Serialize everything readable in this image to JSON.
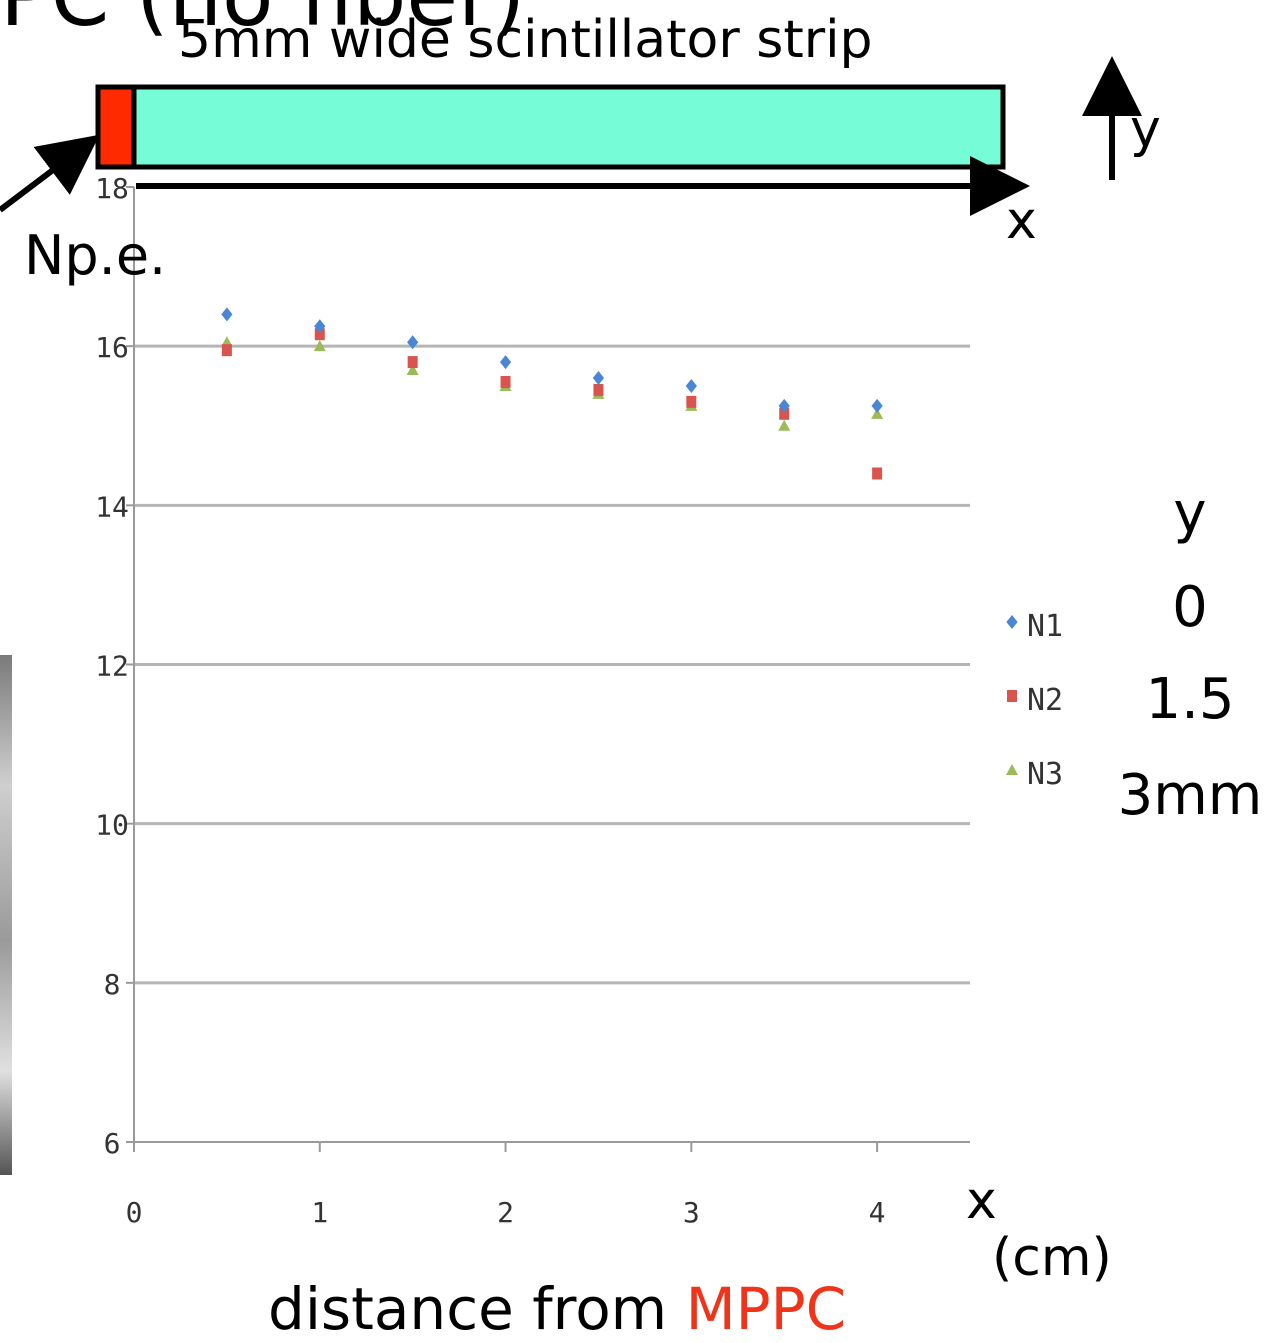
{
  "header": {
    "cropped_title": "PC (no fiber)",
    "strip_label": "5mm wide scintillator strip",
    "x_axis_arrow_label": "x",
    "y_axis_arrow_label": "y",
    "strip_colors": {
      "mppc": "#ff2a00",
      "scintillator": "#76fcd7"
    }
  },
  "ylabel": "Np.e.",
  "xlabel": {
    "prefix": "distance from ",
    "highlight": "MPPC",
    "highlight_color": "#f0341a"
  },
  "xaxis_symbol": "x",
  "xunit": "(cm)",
  "legend_header": "y",
  "legend_values": [
    "0",
    "1.5",
    "3mm"
  ],
  "chart_data": {
    "type": "scatter",
    "x": [
      0.5,
      1.0,
      1.5,
      2.0,
      2.5,
      3.0,
      3.5,
      4.0
    ],
    "series": [
      {
        "name": "N1",
        "marker": "diamond",
        "color": "#4a86d4",
        "values": [
          16.4,
          16.25,
          16.05,
          15.8,
          15.6,
          15.5,
          15.25,
          15.25
        ]
      },
      {
        "name": "N2",
        "marker": "square",
        "color": "#d9534f",
        "values": [
          15.95,
          16.15,
          15.8,
          15.55,
          15.45,
          15.3,
          15.15,
          14.4
        ]
      },
      {
        "name": "N3",
        "marker": "triangle",
        "color": "#9bbb59",
        "values": [
          16.05,
          16.0,
          15.7,
          15.5,
          15.4,
          15.25,
          15.0,
          15.15
        ]
      }
    ],
    "xticks": [
      "0",
      "1",
      "2",
      "3",
      "4"
    ],
    "yticks": [
      "6",
      "8",
      "10",
      "12",
      "14",
      "16",
      "18"
    ],
    "xlim": [
      0,
      4.5
    ],
    "ylim": [
      6,
      18
    ],
    "grid": true,
    "legend_position": "right"
  }
}
